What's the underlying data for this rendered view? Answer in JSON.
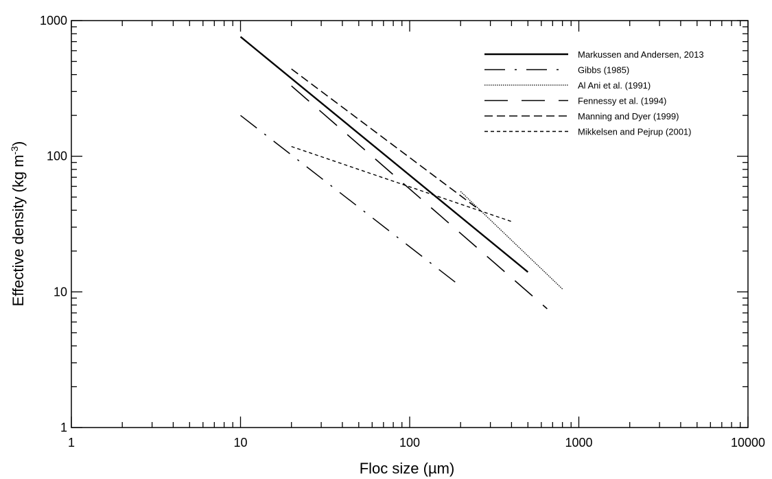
{
  "chart_data": {
    "type": "line",
    "title": "",
    "xlabel": "Floc size (µm)",
    "ylabel": "Effective density (kg m",
    "ylabel_sup": "-3",
    "ylabel_close": ")",
    "xscale": "log",
    "yscale": "log",
    "xlim": [
      1,
      10000
    ],
    "ylim": [
      1,
      1000
    ],
    "x_ticks": [
      {
        "value": 1,
        "label": "1"
      },
      {
        "value": 10,
        "label": "10"
      },
      {
        "value": 100,
        "label": "100"
      },
      {
        "value": 1000,
        "label": "1000"
      },
      {
        "value": 10000,
        "label": "10000"
      }
    ],
    "y_ticks": [
      {
        "value": 1,
        "label": "1"
      },
      {
        "value": 10,
        "label": "10"
      },
      {
        "value": 100,
        "label": "100"
      },
      {
        "value": 1000,
        "label": "1000"
      }
    ],
    "grid": false,
    "legend_position": "top-right",
    "series": [
      {
        "name": "Markussen and Andersen, 2013",
        "style": "solid",
        "x": [
          10,
          500
        ],
        "y": [
          760,
          14
        ]
      },
      {
        "name": "Gibbs (1985)",
        "style": "dashdot",
        "x": [
          10,
          200
        ],
        "y": [
          200,
          11
        ]
      },
      {
        "name": "Al Ani et al. (1991)",
        "style": "dotted",
        "x": [
          200,
          800
        ],
        "y": [
          55,
          10.5
        ]
      },
      {
        "name": "Fennessy et al. (1994)",
        "style": "longdash",
        "x": [
          20,
          650
        ],
        "y": [
          330,
          7.5
        ]
      },
      {
        "name": "Manning and Dyer (1999)",
        "style": "dashed",
        "x": [
          20,
          260
        ],
        "y": [
          440,
          40
        ]
      },
      {
        "name": "Mikkelsen and Pejrup (2001)",
        "style": "shortdash",
        "x": [
          20,
          400
        ],
        "y": [
          118,
          33
        ]
      }
    ]
  }
}
